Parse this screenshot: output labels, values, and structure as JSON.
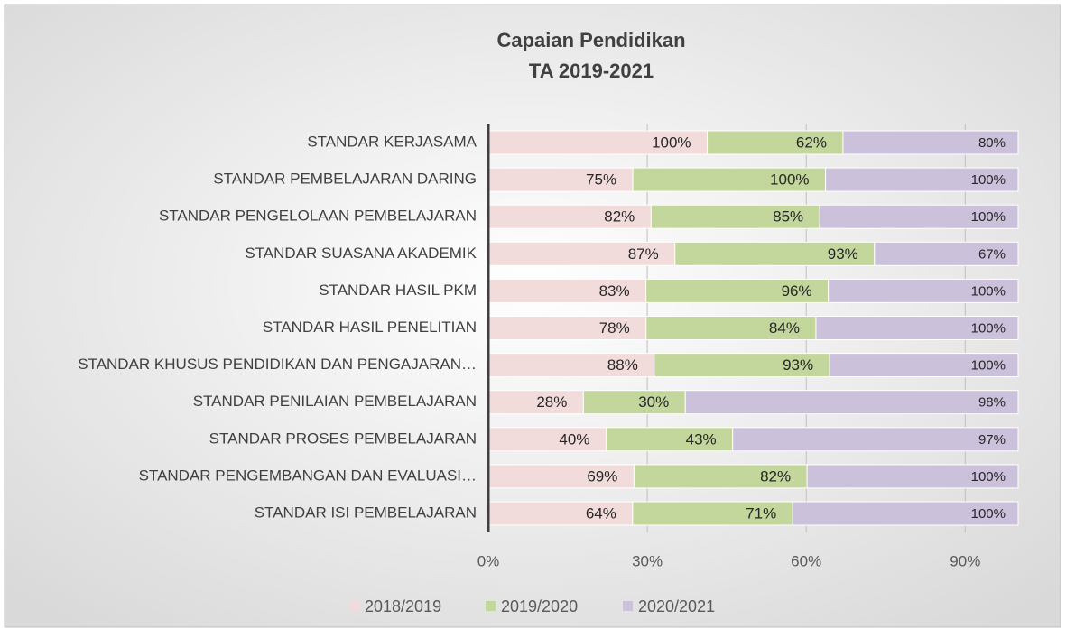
{
  "chart_data": {
    "type": "bar",
    "orientation": "horizontal",
    "stacked": "percent",
    "title": [
      "Capaian Pendidikan",
      "TA 2019-2021"
    ],
    "categories": [
      "STANDAR KERJASAMA",
      "STANDAR PEMBELAJARAN DARING",
      "STANDAR PENGELOLAAN PEMBELAJARAN",
      "STANDAR SUASANA AKADEMIK",
      "STANDAR HASIL PKM",
      "STANDAR HASIL PENELITIAN",
      "STANDAR KHUSUS PENDIDIKAN DAN PENGAJARAN…",
      "STANDAR PENILAIAN PEMBELAJARAN",
      "STANDAR PROSES PEMBELAJARAN",
      "STANDAR PENGEMBANGAN DAN EVALUASI…",
      "STANDAR ISI PEMBELAJARAN"
    ],
    "series": [
      {
        "name": "2018/2019",
        "color": "#f2dcdb",
        "values": [
          100,
          75,
          82,
          87,
          83,
          78,
          88,
          28,
          40,
          69,
          64
        ],
        "value_labels": [
          "100%",
          "75%",
          "82%",
          "87%",
          "83%",
          "78%",
          "88%",
          "28%",
          "40%",
          "69%",
          "64%"
        ]
      },
      {
        "name": "2019/2020",
        "color": "#c3d69b",
        "values": [
          62,
          100,
          85,
          93,
          96,
          84,
          93,
          30,
          43,
          82,
          71
        ],
        "value_labels": [
          "62%",
          "100%",
          "85%",
          "93%",
          "96%",
          "84%",
          "93%",
          "30%",
          "43%",
          "82%",
          "71%"
        ]
      },
      {
        "name": "2020/2021",
        "color": "#ccc1da",
        "values": [
          80,
          100,
          100,
          67,
          100,
          100,
          100,
          98,
          97,
          100,
          100
        ],
        "value_labels": [
          "80%",
          "100%",
          "100%",
          "67%",
          "100%",
          "100%",
          "100%",
          "98%",
          "97%",
          "100%",
          "100%"
        ]
      }
    ],
    "xlim": [
      0,
      100
    ],
    "xticks": [
      {
        "value": 0,
        "label": "0%"
      },
      {
        "value": 30,
        "label": "30%"
      },
      {
        "value": 60,
        "label": "60%"
      },
      {
        "value": 90,
        "label": "90%"
      }
    ],
    "grid": true,
    "legend": "bottom"
  }
}
